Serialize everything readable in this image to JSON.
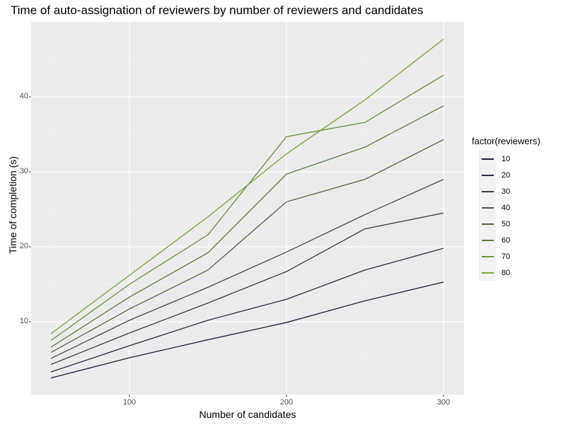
{
  "chart_data": {
    "type": "line",
    "title": "Time of auto-assignation of reviewers by number of reviewers and candidates",
    "xlabel": "Number of candidates",
    "ylabel": "Time of completion (s)",
    "x": [
      50,
      100,
      150,
      200,
      250,
      300
    ],
    "xticks": [
      "100",
      "200",
      "300"
    ],
    "yticks": [
      "10",
      "20",
      "30",
      "40"
    ],
    "xlim": [
      37.5,
      312.5
    ],
    "ylim": [
      1.5,
      49.5
    ],
    "grid": true,
    "legend_position": "right",
    "legend_title": "factor(reviewers)",
    "series": [
      {
        "name": "10",
        "color": "#1d1e3c",
        "values": [
          2.5,
          5.2,
          7.6,
          9.9,
          12.8,
          15.3
        ]
      },
      {
        "name": "20",
        "color": "#2a2e42",
        "values": [
          3.3,
          6.8,
          10.2,
          13.0,
          16.9,
          19.8
        ]
      },
      {
        "name": "30",
        "color": "#383f44",
        "values": [
          4.3,
          8.5,
          12.5,
          16.7,
          22.4,
          24.5
        ]
      },
      {
        "name": "40",
        "color": "#465244",
        "values": [
          5.1,
          10.2,
          14.6,
          19.3,
          24.3,
          29.0
        ]
      },
      {
        "name": "50",
        "color": "#536643",
        "values": [
          5.9,
          11.7,
          16.9,
          26.0,
          29.0,
          34.3
        ]
      },
      {
        "name": "60",
        "color": "#5f7b40",
        "values": [
          6.6,
          13.3,
          19.2,
          29.7,
          33.3,
          38.8
        ]
      },
      {
        "name": "70",
        "color": "#6a903d",
        "values": [
          7.5,
          15.0,
          21.6,
          34.7,
          36.6,
          42.9
        ]
      },
      {
        "name": "80",
        "color": "#78a63c",
        "values": [
          8.4,
          16.2,
          24.0,
          32.4,
          39.6,
          47.7
        ]
      }
    ]
  },
  "labels": {
    "title": "Time of auto-assignation of reviewers by number of reviewers and candidates",
    "xlabel": "Number of candidates",
    "ylabel": "Time of completion (s)",
    "legend_title": "factor(reviewers)",
    "xticks": [
      "100",
      "200",
      "300"
    ],
    "yticks": [
      "10",
      "20",
      "30",
      "40"
    ],
    "legend": [
      "10",
      "20",
      "30",
      "40",
      "50",
      "60",
      "70",
      "80"
    ]
  }
}
